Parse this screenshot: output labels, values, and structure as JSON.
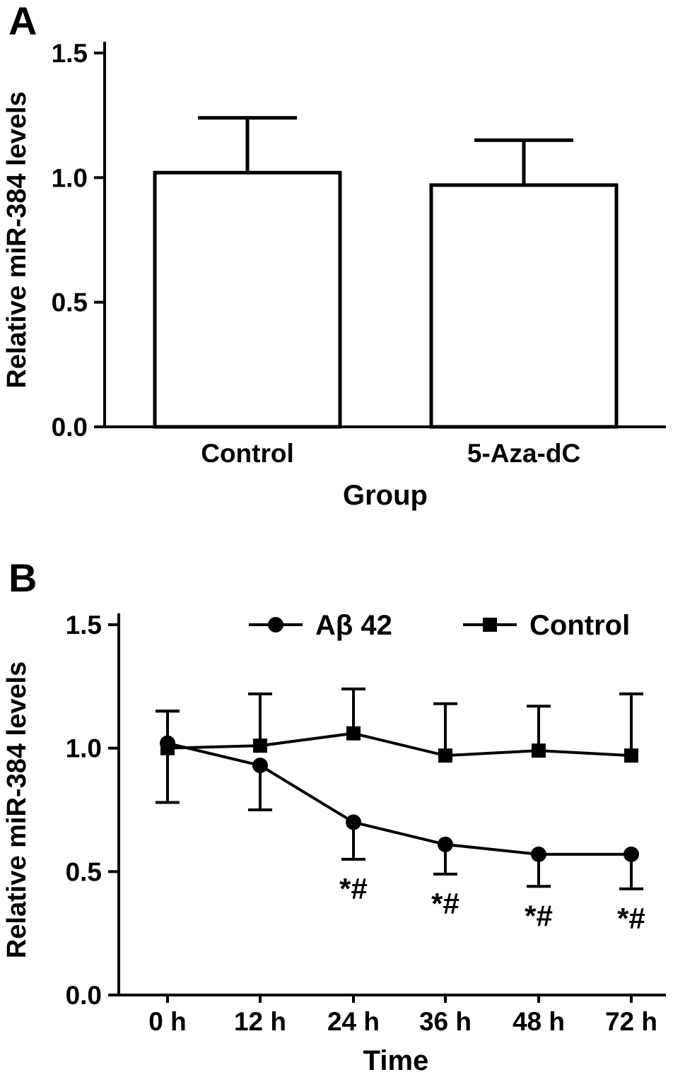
{
  "figure": {
    "panel_a_label": "A",
    "panel_b_label": "B"
  },
  "colors": {
    "foreground": "#000000",
    "background": "#ffffff",
    "bar_fill": "#ffffff"
  },
  "chart_data": [
    {
      "type": "bar",
      "panel": "A",
      "title": "",
      "categories": [
        "Control",
        "5-Aza-dC"
      ],
      "values": [
        1.02,
        0.97
      ],
      "errors_up": [
        0.22,
        0.18
      ],
      "xlabel": "Group",
      "ylabel": "Relative miR-384 levels",
      "ylim": [
        0,
        1.5
      ],
      "yticks": [
        0,
        0.5,
        1,
        1.5
      ],
      "grid": false,
      "legend_position": "none"
    },
    {
      "type": "line",
      "panel": "B",
      "title": "",
      "categories": [
        "0 h",
        "12 h",
        "24 h",
        "36 h",
        "48 h",
        "72 h"
      ],
      "series": [
        {
          "name": "Aβ 42",
          "marker": "circle",
          "values": [
            1.02,
            0.93,
            0.7,
            0.61,
            0.57,
            0.57
          ],
          "errors_up": [
            0.13,
            0,
            0,
            0,
            0,
            0
          ],
          "errors_down": [
            0.24,
            0.18,
            0.15,
            0.12,
            0.13,
            0.14
          ]
        },
        {
          "name": "Control",
          "marker": "square",
          "values": [
            1.0,
            1.01,
            1.06,
            0.97,
            0.99,
            0.97
          ],
          "errors_up": [
            0.15,
            0.21,
            0.18,
            0.21,
            0.18,
            0.25
          ],
          "errors_down": [
            0.22,
            0,
            0,
            0,
            0,
            0
          ]
        }
      ],
      "annotations": [
        {
          "text": "*#",
          "category": "24 h",
          "category_index": 2
        },
        {
          "text": "*#",
          "category": "36 h",
          "category_index": 3
        },
        {
          "text": "*#",
          "category": "48 h",
          "category_index": 4
        },
        {
          "text": "*#",
          "category": "72 h",
          "category_index": 5
        }
      ],
      "xlabel": "Time",
      "ylabel": "Relative miR-384 levels",
      "ylim": [
        0,
        1.5
      ],
      "yticks": [
        0,
        0.5,
        1,
        1.5
      ],
      "grid": false,
      "legend_position": "top"
    }
  ]
}
